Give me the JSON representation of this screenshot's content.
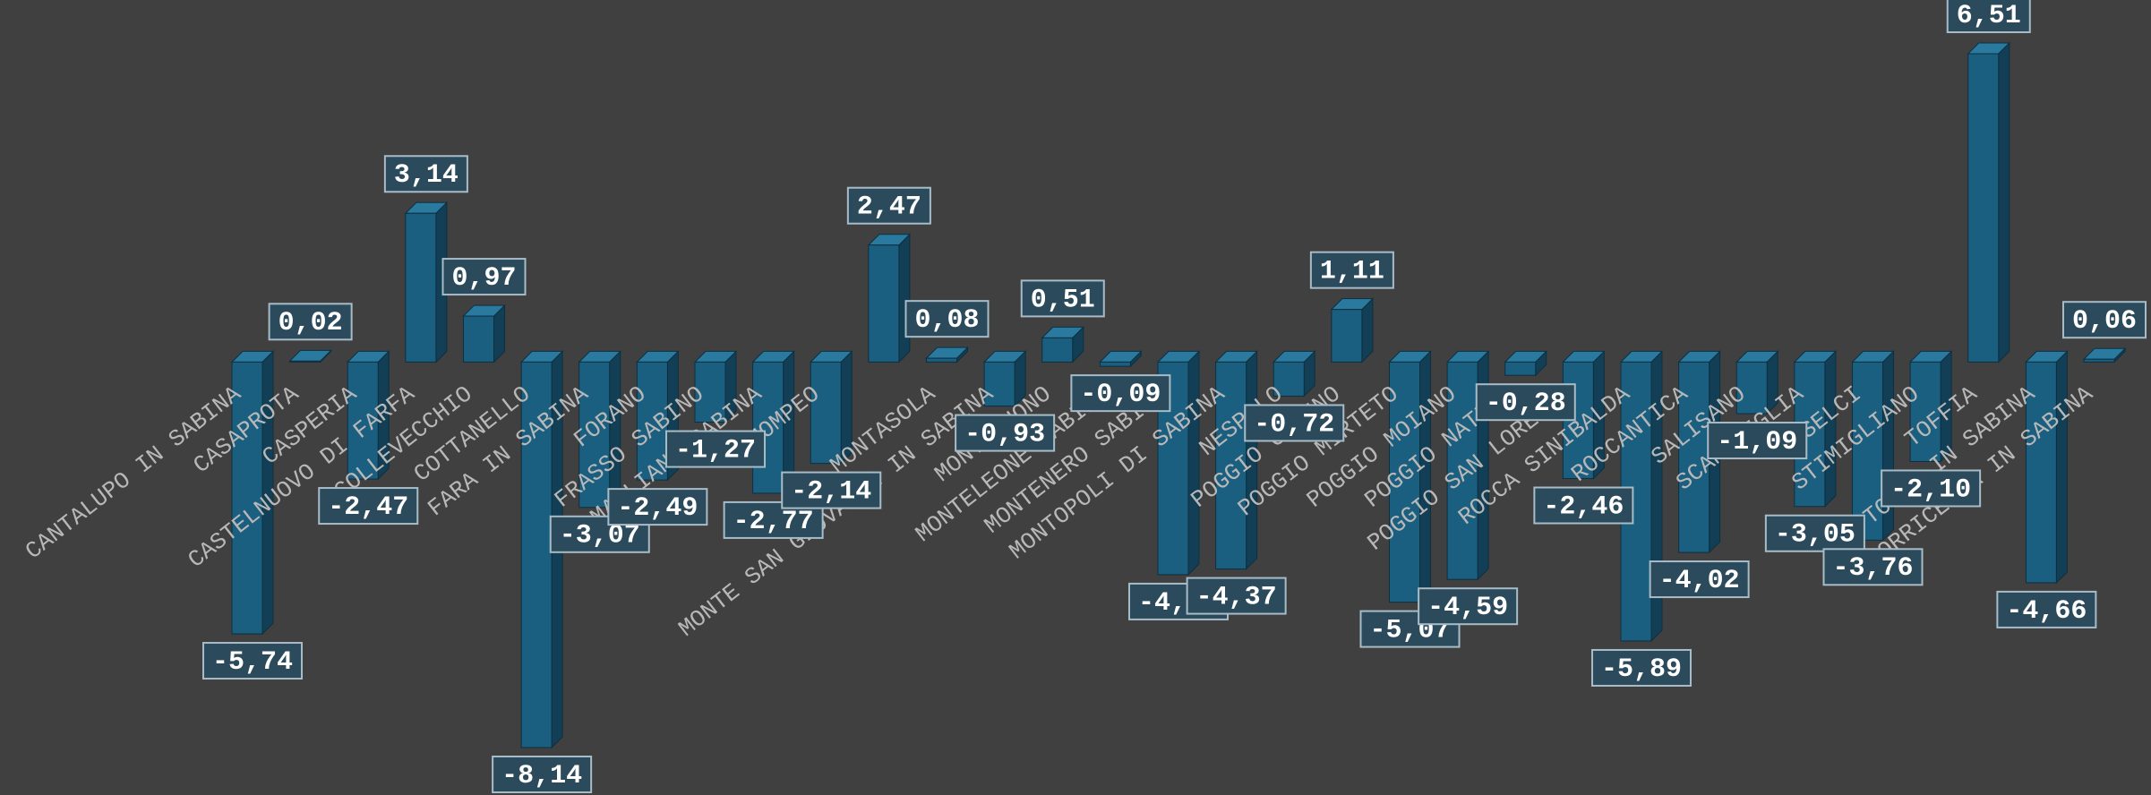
{
  "chart_data": {
    "type": "bar",
    "color": "#1b5f80",
    "categories": [
      "CANTALUPO IN SABINA",
      "CASAPROTA",
      "CASPERIA",
      "CASTELNUOVO DI FARFA",
      "COLLEVECCHIO",
      "COTTANELLO",
      "FARA IN SABINA",
      "FORANO",
      "FRASSO SABINO",
      "MAGLIANO SABINA",
      "MOMPEO",
      null,
      "MONTASOLA",
      "MONTE SAN GIOVANNI IN SABINA",
      "MONTEBUONO",
      "MONTELEONE SABINO",
      "MONTENERO SABINO",
      "MONTOPOLI DI SABINA",
      "NESPOLO",
      "POGGIO CATINO",
      "POGGIO MIRTETO",
      "POGGIO MOIANO",
      "POGGIO NATIVO",
      "POGGIO SAN LORENZO",
      "ROCCA SINIBALDA",
      "ROCCANTICA",
      "SALISANO",
      "SCANDRIGLIA",
      "SELCI",
      "STIMIGLIANO",
      "TOFFIA",
      "TORRI IN SABINA",
      "TORRICELLA IN SABINA"
    ],
    "values": [
      -5.74,
      0.02,
      -2.47,
      3.14,
      0.97,
      -8.14,
      -3.07,
      -2.49,
      -1.27,
      -2.77,
      -2.14,
      2.47,
      0.08,
      -0.93,
      0.51,
      -0.09,
      -4.49,
      -4.37,
      -0.72,
      1.11,
      -5.07,
      -4.59,
      -0.28,
      -2.46,
      -5.89,
      -4.02,
      -1.09,
      -3.05,
      -3.76,
      -2.1,
      6.51,
      -4.66,
      0.06
    ],
    "value_labels": [
      "-5,74",
      "0,02",
      "-2,47",
      "3,14",
      "0,97",
      "-8,14",
      "-3,07",
      "-2,49",
      "-1,27",
      "-2,77",
      "-2,14",
      "2,47",
      "0,08",
      "-0,93",
      "0,51",
      "-0,09",
      "-4,49",
      "-4,37",
      "-0,72",
      "1,11",
      "-5,07",
      "-4,59",
      "-0,28",
      "-2,46",
      "-5,89",
      "-4,02",
      "-1,09",
      "-3,05",
      "-3,76",
      "-2,10",
      "6,51",
      "-4,66",
      "0,06"
    ]
  }
}
